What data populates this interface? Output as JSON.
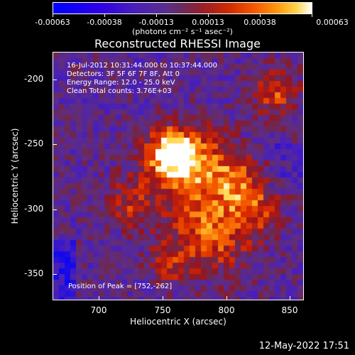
{
  "colorbar": {
    "ticks": [
      "-0.00063",
      "-0.00038",
      "-0.00013",
      "0.00013",
      "0.00038",
      "0.00063"
    ],
    "units": "(photons cm⁻² s⁻¹ asec⁻²)"
  },
  "plot": {
    "title": "Reconstructed RHESSI Image",
    "info": [
      "16-Jul-2012 10:31:44.000 to 10:37:44.000",
      "Detectors: 3F 5F 6F 7F 8F, Att 0",
      "Energy Range: 12.0 - 25.0 keV",
      "Clean     Total counts: 3.76E+03"
    ],
    "peak": "Position of Peak = [752,-262]",
    "xlabel": "Heliocentric X (arcsec)",
    "ylabel": "Heliocentric Y (arcsec)",
    "xticks": [
      "700",
      "750",
      "800",
      "850"
    ],
    "yticks": [
      "-200",
      "-250",
      "-300",
      "-350"
    ]
  },
  "timestamp": "12-May-2022 17:51",
  "colors": {
    "background": "#000000",
    "low": "#0000ff",
    "mid": "#5a2e8a",
    "high": "#ffffff"
  }
}
